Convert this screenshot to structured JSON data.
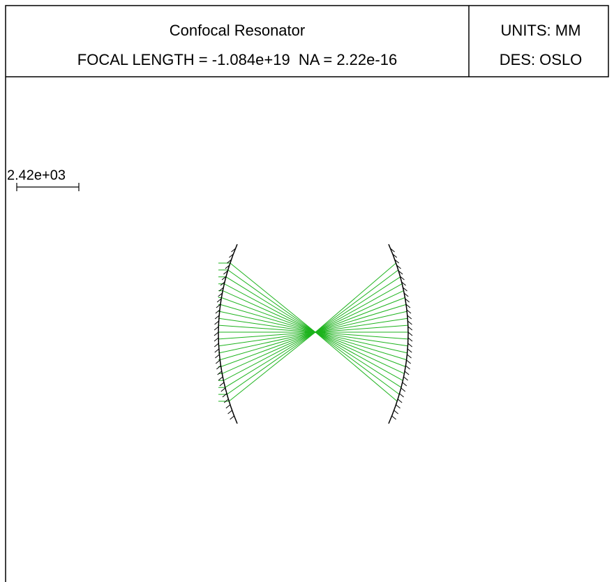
{
  "header": {
    "title": "Confocal Resonator",
    "subtitle": "FOCAL LENGTH = -1.084e+19  NA = 2.22e-16",
    "units": "UNITS: MM",
    "designer": "DES: OSLO"
  },
  "scale": {
    "label": "2.42e+03"
  }
}
